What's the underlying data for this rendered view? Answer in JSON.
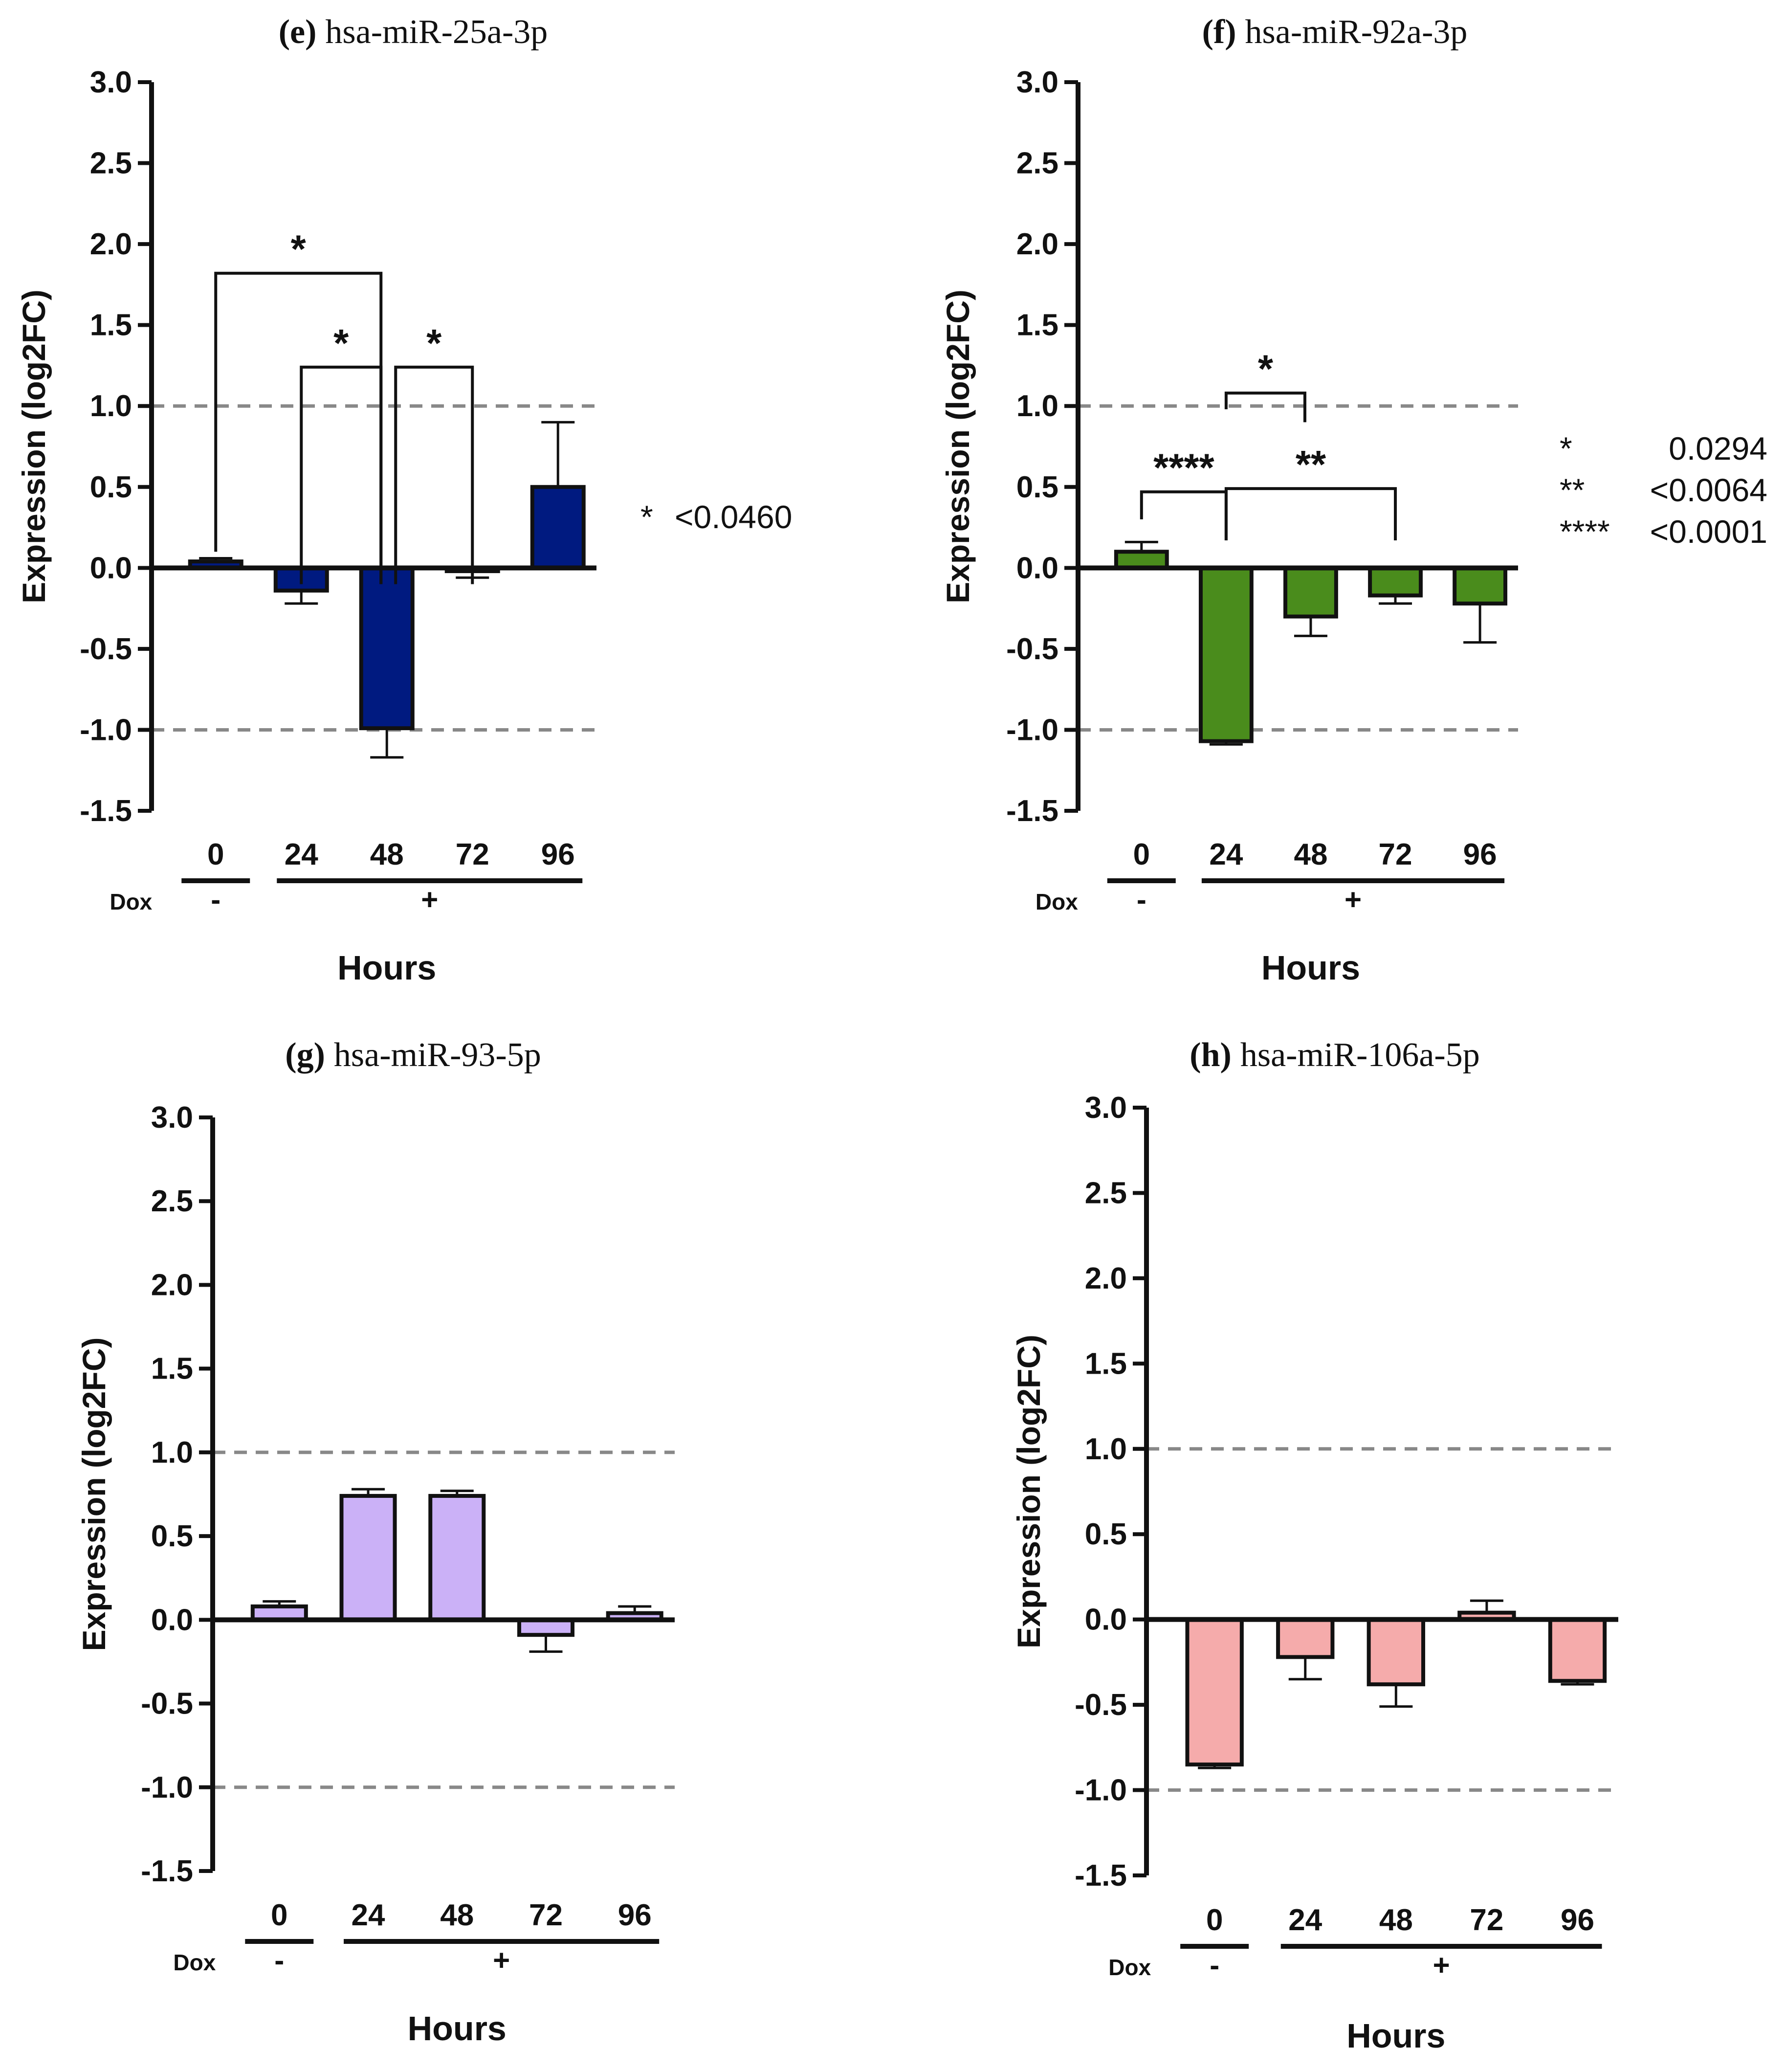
{
  "figure": {
    "hours_label": "Hours",
    "dox_label": "Dox",
    "dox_minus": "-",
    "dox_plus": "+",
    "ylabel": "Expression (log2FC)"
  },
  "chart_data": [
    {
      "id": "e",
      "panel_letter": "(e)",
      "title": "hsa-miR-25a-3p",
      "type": "bar",
      "categories": [
        "0",
        "24",
        "48",
        "72",
        "96"
      ],
      "values": [
        0.04,
        -0.14,
        -0.99,
        -0.02,
        0.5
      ],
      "errors": [
        0.02,
        0.08,
        0.18,
        0.04,
        0.4
      ],
      "bar_color": "#001a80",
      "ylabel": "Expression (log2FC)",
      "xlabel": "Hours",
      "ylim": [
        -1.5,
        3.0
      ],
      "yticks": [
        "3.0",
        "2.5",
        "2.0",
        "1.5",
        "1.0",
        "0.5",
        "0.0",
        "-0.5",
        "-1.0",
        "-1.5"
      ],
      "reference_lines": [
        1.0,
        -1.0
      ],
      "brackets": [
        {
          "from": 0,
          "to": 2,
          "y": 1.82,
          "label": "*",
          "drop_left": 0.1,
          "drop_right": -0.1
        },
        {
          "from": 1,
          "to": 2,
          "y": 1.24,
          "label": "*",
          "drop_left": -0.1,
          "drop_right": -0.1
        },
        {
          "from": 2,
          "to": 3,
          "y": 1.24,
          "label": "*",
          "drop_left": -0.1,
          "drop_right": -0.1
        }
      ],
      "significance_key": [
        {
          "symbol": "*",
          "value": "<0.0460"
        }
      ]
    },
    {
      "id": "f",
      "panel_letter": "(f)",
      "title": "hsa-miR-92a-3p",
      "type": "bar",
      "categories": [
        "0",
        "24",
        "48",
        "72",
        "96"
      ],
      "values": [
        0.1,
        -1.07,
        -0.3,
        -0.17,
        -0.22
      ],
      "errors": [
        0.06,
        0.02,
        0.12,
        0.05,
        0.24
      ],
      "bar_color": "#4a8c1c",
      "ylabel": "Expression (log2FC)",
      "xlabel": "Hours",
      "ylim": [
        -1.5,
        3.0
      ],
      "yticks": [
        "3.0",
        "2.5",
        "2.0",
        "1.5",
        "1.0",
        "0.5",
        "0.0",
        "-0.5",
        "-1.0",
        "-1.5"
      ],
      "reference_lines": [
        1.0,
        -1.0
      ],
      "brackets": [
        {
          "from": 0,
          "to": 1,
          "y": 0.47,
          "label": "****",
          "drop_left": 0.3,
          "drop_right": 0.17
        },
        {
          "from": 1,
          "to": 3,
          "y": 0.49,
          "label": "**",
          "drop_left": 0.17,
          "drop_right": 0.17
        },
        {
          "from": 1,
          "to": 2,
          "y": 1.08,
          "label": "*",
          "drop_left": 0.98,
          "drop_right": 0.9
        }
      ],
      "significance_key": [
        {
          "symbol": "*",
          "value": "0.0294"
        },
        {
          "symbol": "**",
          "value": "<0.0064"
        },
        {
          "symbol": "****",
          "value": "<0.0001"
        }
      ]
    },
    {
      "id": "g",
      "panel_letter": "(g)",
      "title": "hsa-miR-93-5p",
      "type": "bar",
      "categories": [
        "0",
        "24",
        "48",
        "72",
        "96"
      ],
      "values": [
        0.08,
        0.74,
        0.74,
        -0.09,
        0.04
      ],
      "errors": [
        0.03,
        0.04,
        0.03,
        0.1,
        0.04
      ],
      "bar_color": "#cbb1f7",
      "ylabel": "Expression (log2FC)",
      "xlabel": "Hours",
      "ylim": [
        -1.5,
        3.0
      ],
      "yticks": [
        "3.0",
        "2.5",
        "2.0",
        "1.5",
        "1.0",
        "0.5",
        "0.0",
        "-0.5",
        "-1.0",
        "-1.5"
      ],
      "reference_lines": [
        1.0,
        -1.0
      ],
      "brackets": [],
      "significance_key": []
    },
    {
      "id": "h",
      "panel_letter": "(h)",
      "title": "hsa-miR-106a-5p",
      "type": "bar",
      "categories": [
        "0",
        "24",
        "48",
        "72",
        "96"
      ],
      "values": [
        -0.85,
        -0.22,
        -0.38,
        0.04,
        -0.36
      ],
      "errors": [
        0.02,
        0.13,
        0.13,
        0.07,
        0.02
      ],
      "bar_color": "#f5abab",
      "ylabel": "Expression (log2FC)",
      "xlabel": "Hours",
      "ylim": [
        -1.5,
        3.0
      ],
      "yticks": [
        "3.0",
        "2.5",
        "2.0",
        "1.5",
        "1.0",
        "0.5",
        "0.0",
        "-0.5",
        "-1.0",
        "-1.5"
      ],
      "reference_lines": [
        1.0,
        -1.0
      ],
      "brackets": [],
      "significance_key": []
    }
  ]
}
